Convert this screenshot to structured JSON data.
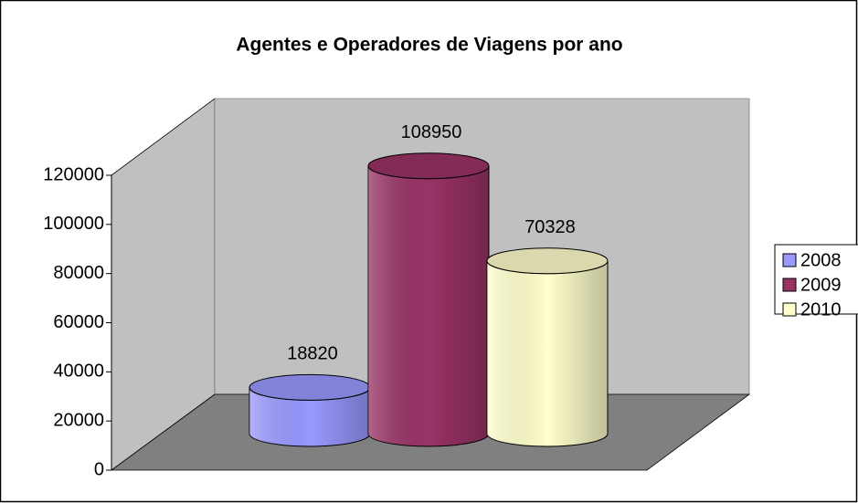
{
  "chart_data": {
    "type": "bar",
    "title": "Agentes e Operadores de Viagens por ano",
    "categories": [
      null
    ],
    "series": [
      {
        "name": "2008",
        "color": "#9999ff",
        "values": [
          18820
        ]
      },
      {
        "name": "2009",
        "color": "#993366",
        "values": [
          108950
        ]
      },
      {
        "name": "2010",
        "color": "#ffffcc",
        "values": [
          70328
        ]
      }
    ],
    "ylim": [
      0,
      120000
    ],
    "yticks": [
      0,
      20000,
      40000,
      60000,
      80000,
      100000,
      120000
    ],
    "legend": "right"
  }
}
